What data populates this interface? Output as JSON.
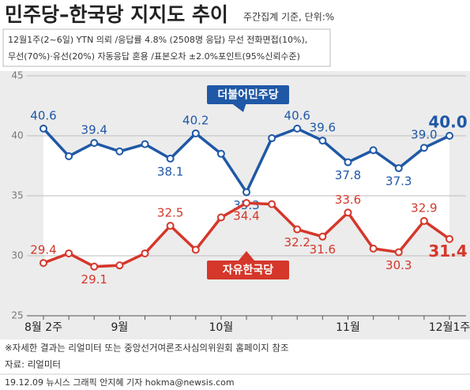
{
  "chart_data": {
    "type": "line",
    "title": "민주당–한국당 지지도 추이",
    "subtitle": "주간집계 기준, 단위:%",
    "notes": [
      "12월1주(2~6일) YTN 의뢰 /응답률 4.8% (2508명 응답) 무선 전화면접(10%),",
      "무선(70%)·유선(20%) 자동응답 혼용 /표본오차 ±2.0%포인트(95%신뢰수준)"
    ],
    "footnotes": [
      "※자세한 결과는 리얼미터 또는 중앙선거여론조사심의위원회 홈페이지 참조",
      "자료: 리얼미터"
    ],
    "credit": "19.12.09 뉴시스 그래픽 안지혜 기자 hokma@newsis.com",
    "categories": [
      "8월 2주",
      null,
      null,
      "9월",
      null,
      null,
      null,
      "10월",
      null,
      null,
      null,
      null,
      "11월",
      null,
      null,
      null,
      "12월1주"
    ],
    "ylim": [
      25,
      45
    ],
    "yticks": [
      25,
      30,
      35,
      40,
      45
    ],
    "grid": true,
    "series": [
      {
        "name": "더불어민주당",
        "color": "#1f58a6",
        "values": [
          40.6,
          38.3,
          39.4,
          38.7,
          39.3,
          38.1,
          40.2,
          38.5,
          35.3,
          39.8,
          40.6,
          39.6,
          37.8,
          38.8,
          37.3,
          39.0,
          40.0
        ],
        "value_labels": [
          "40.6",
          null,
          "39.4",
          null,
          null,
          "38.1",
          "40.2",
          null,
          "35.3",
          null,
          "40.6",
          "39.6",
          "37.8",
          null,
          "37.3",
          "39.0",
          "40.0"
        ]
      },
      {
        "name": "자유한국당",
        "color": "#d5372a",
        "values": [
          29.4,
          30.2,
          29.1,
          29.2,
          30.2,
          32.5,
          30.5,
          33.2,
          34.4,
          34.3,
          32.2,
          31.6,
          33.6,
          30.6,
          30.3,
          32.9,
          31.4
        ],
        "value_labels": [
          "29.4",
          null,
          "29.1",
          null,
          null,
          "32.5",
          null,
          null,
          "34.4",
          null,
          "32.2",
          "31.6",
          "33.6",
          null,
          "30.3",
          "32.9",
          "31.4"
        ]
      }
    ]
  }
}
